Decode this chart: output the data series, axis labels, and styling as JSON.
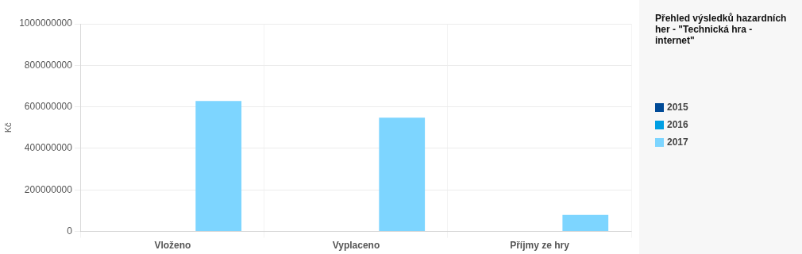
{
  "chart_data": {
    "type": "bar",
    "title": "Přehled výsledků hazardních her - \"Technická hra - internet\"",
    "ylabel": "Kč",
    "categories": [
      "Vloženo",
      "Vyplaceno",
      "Příjmy ze hry"
    ],
    "series": [
      {
        "name": "2015",
        "color": "#004a97",
        "values": [
          null,
          null,
          null
        ]
      },
      {
        "name": "2016",
        "color": "#009fe3",
        "values": [
          null,
          null,
          null
        ]
      },
      {
        "name": "2017",
        "color": "#7dd5ff",
        "values": [
          628000000,
          548000000,
          80000000
        ]
      }
    ],
    "ylim": [
      0,
      1000000000
    ],
    "yticks": [
      0,
      200000000,
      400000000,
      600000000,
      800000000,
      1000000000
    ],
    "grid": true,
    "legend": "right"
  }
}
